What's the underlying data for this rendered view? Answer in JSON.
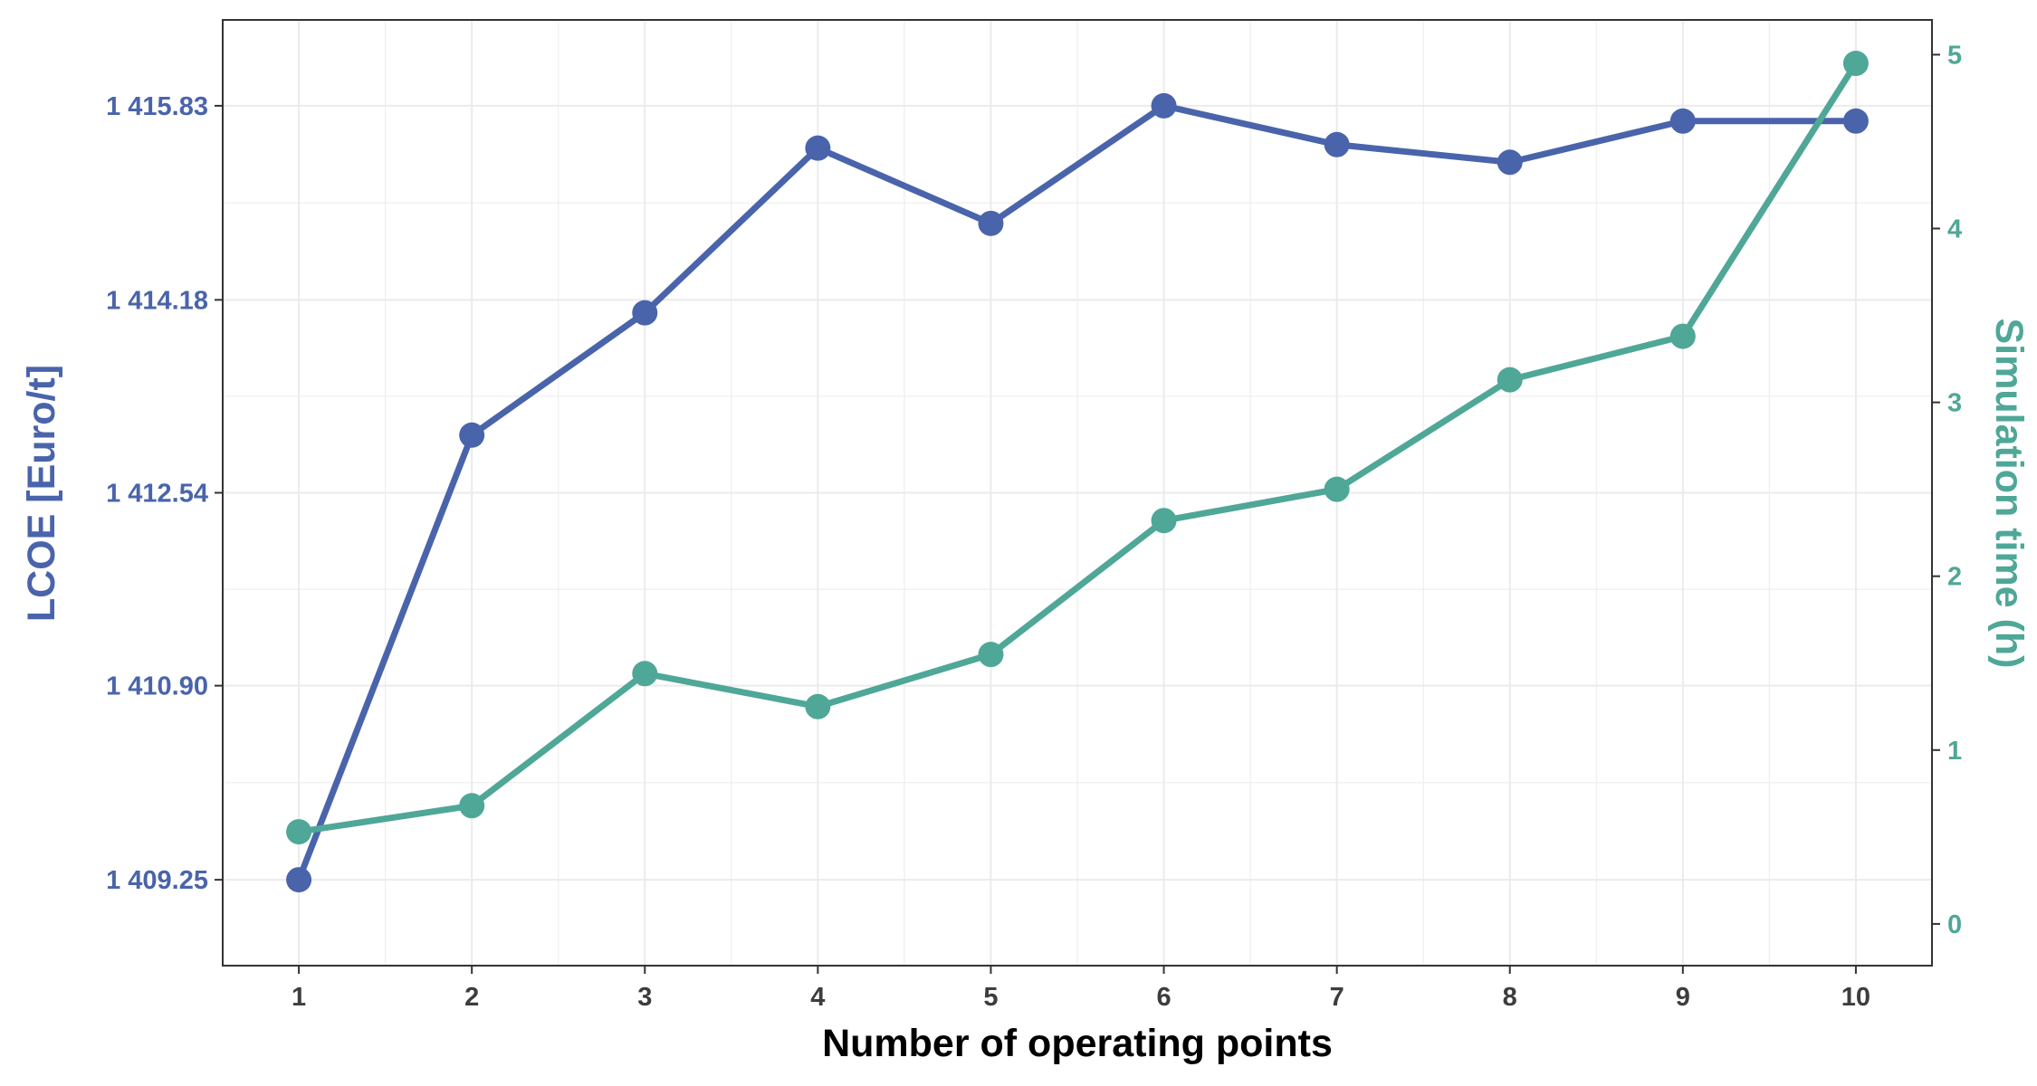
{
  "colors": {
    "lcoe": "#4a64ab",
    "simtime": "#4fa797",
    "axis": "#333333",
    "grid": "#ebebeb",
    "xtext": "#3d3d3d"
  },
  "chart_data": {
    "type": "line",
    "xlabel": "Number of operating points",
    "ylabel": "LCOE [Euro/t]",
    "y2label": "Simulation time (h)",
    "x": [
      1,
      2,
      3,
      4,
      5,
      6,
      7,
      8,
      9,
      10
    ],
    "x_ticks": [
      "1",
      "2",
      "3",
      "4",
      "5",
      "6",
      "7",
      "8",
      "9",
      "10"
    ],
    "xlim": [
      0.56,
      10.44
    ],
    "y_ticks": [
      1409.25,
      1410.9,
      1412.54,
      1414.18,
      1415.83
    ],
    "y_tick_labels": [
      "1 409.25",
      "1 410.90",
      "1 412.54",
      "1 414.18",
      "1 415.83"
    ],
    "ylim": [
      1408.52,
      1416.56
    ],
    "y2_ticks": [
      0,
      1,
      2,
      3,
      4,
      5
    ],
    "y2_tick_labels": [
      "0",
      "1",
      "2",
      "3",
      "4",
      "5"
    ],
    "y2lim": [
      -0.24,
      5.2
    ],
    "grid": true,
    "series": [
      {
        "axis": "left",
        "values": [
          1409.25,
          1413.03,
          1414.07,
          1415.47,
          1414.83,
          1415.83,
          1415.5,
          1415.35,
          1415.7,
          1415.7
        ]
      },
      {
        "axis": "right",
        "values": [
          0.53,
          0.68,
          1.44,
          1.25,
          1.55,
          2.32,
          2.5,
          3.13,
          3.38,
          4.95
        ]
      }
    ]
  }
}
